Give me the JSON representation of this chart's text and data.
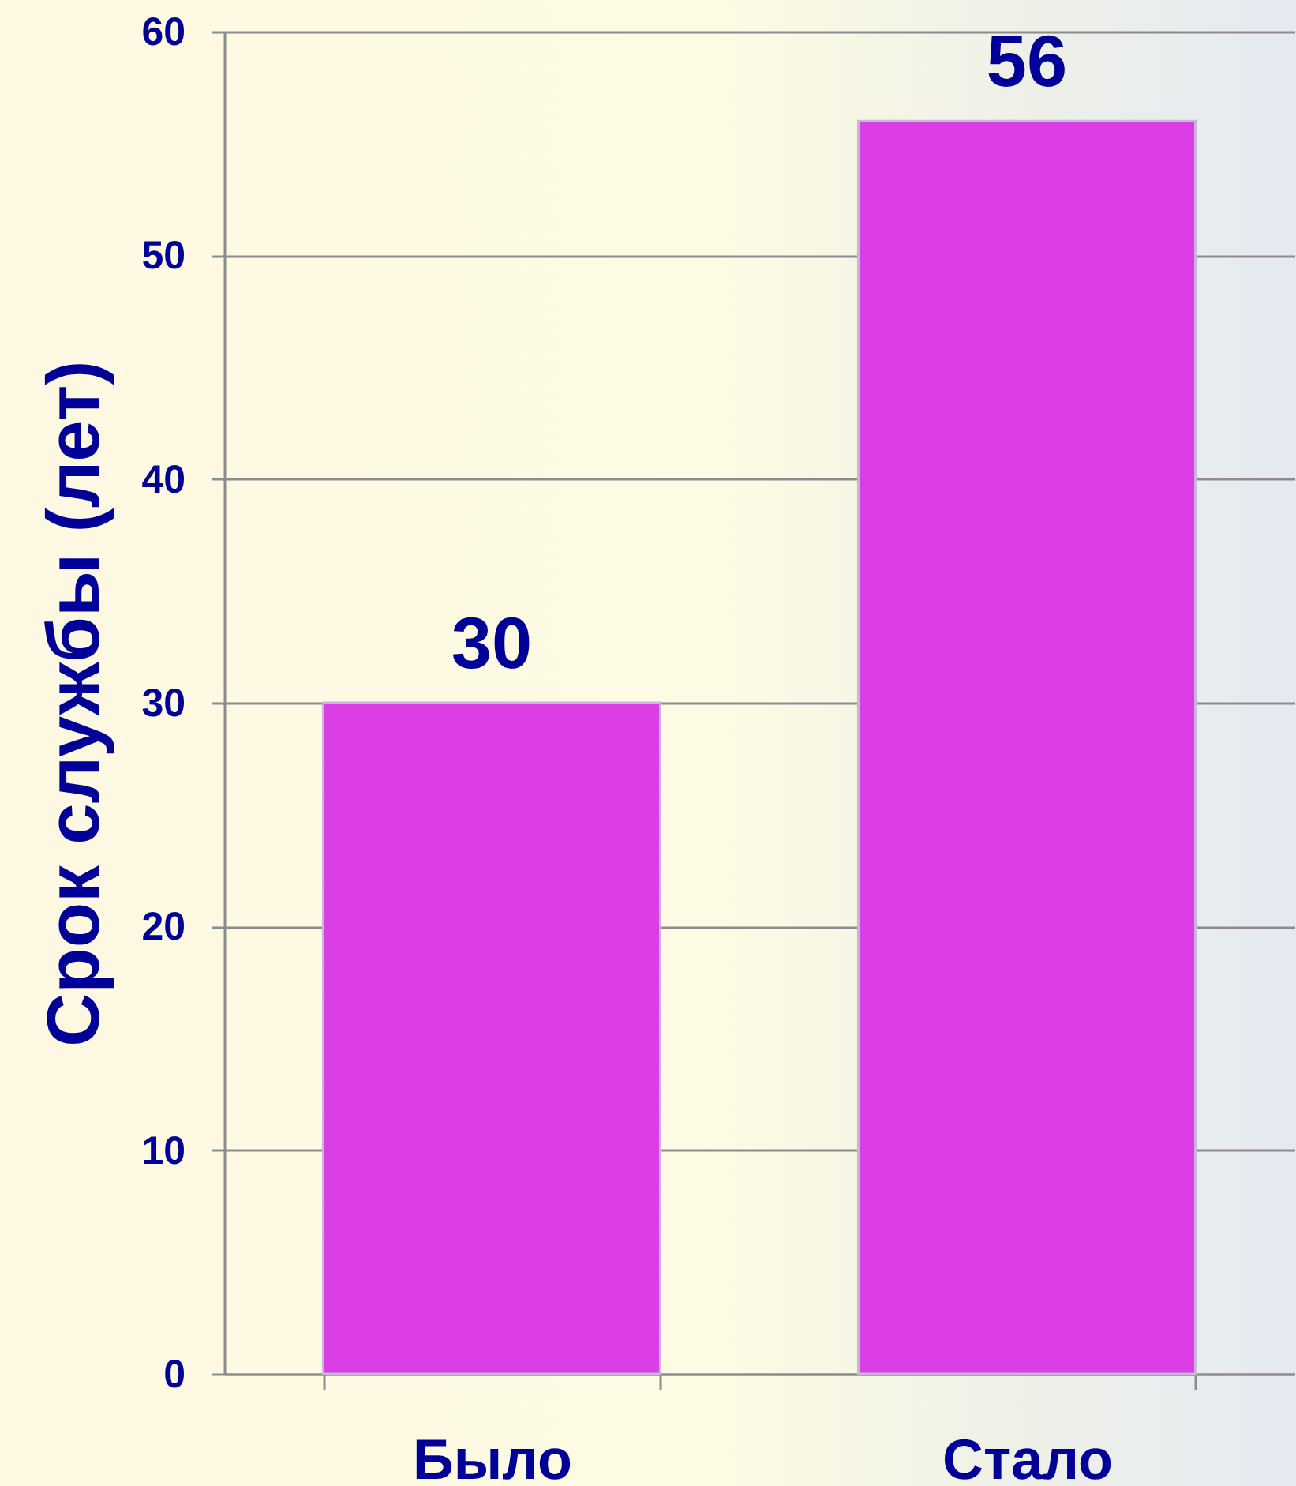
{
  "chart_data": {
    "type": "bar",
    "ylabel": "Срок службы (лет)",
    "categories": [
      "Было",
      "Стало"
    ],
    "values": [
      30,
      56
    ],
    "color": "#dc3ee6",
    "ylim": [
      0,
      60
    ],
    "yticks": [
      0,
      10,
      20,
      30,
      40,
      50,
      60
    ],
    "grid": "y",
    "data_labels": true
  }
}
